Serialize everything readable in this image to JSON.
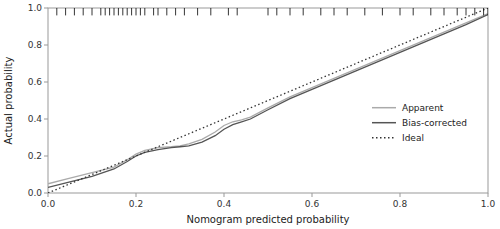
{
  "chart_data": {
    "type": "line",
    "x_label": "Nomogram predicted probability",
    "y_label": "Actual probability",
    "xlim": [
      0.0,
      1.0
    ],
    "ylim": [
      0.0,
      1.0
    ],
    "xticks": [
      {
        "value": 0.0,
        "label": "0.0"
      },
      0.2,
      0.4,
      0.6,
      0.8,
      {
        "value": 1.0,
        "label": "1.0"
      }
    ],
    "yticks": [
      {
        "value": 0.0,
        "label": "0.0"
      },
      0.2,
      0.4,
      0.6,
      0.8,
      {
        "value": 1.0,
        "label": "1.0"
      }
    ],
    "grid": false,
    "legend": "right",
    "series": [
      {
        "name": "Apparent",
        "color": "#aaaaaa",
        "line_style": "solid",
        "x": [
          0.0,
          0.05,
          0.1,
          0.15,
          0.18,
          0.2,
          0.22,
          0.25,
          0.28,
          0.3,
          0.32,
          0.35,
          0.38,
          0.4,
          0.42,
          0.44,
          0.46,
          0.5,
          0.55,
          0.6,
          0.65,
          0.7,
          0.75,
          0.8,
          0.85,
          0.9,
          0.95,
          1.0
        ],
        "values": [
          0.05,
          0.08,
          0.11,
          0.14,
          0.18,
          0.21,
          0.23,
          0.245,
          0.25,
          0.255,
          0.265,
          0.29,
          0.33,
          0.365,
          0.385,
          0.395,
          0.41,
          0.46,
          0.52,
          0.57,
          0.62,
          0.67,
          0.72,
          0.77,
          0.82,
          0.87,
          0.92,
          0.97
        ]
      },
      {
        "name": "Bias-corrected",
        "color": "#555555",
        "line_style": "solid",
        "x": [
          0.0,
          0.05,
          0.1,
          0.15,
          0.18,
          0.2,
          0.22,
          0.25,
          0.28,
          0.3,
          0.32,
          0.35,
          0.38,
          0.4,
          0.42,
          0.44,
          0.46,
          0.5,
          0.55,
          0.6,
          0.65,
          0.7,
          0.75,
          0.8,
          0.85,
          0.9,
          0.95,
          1.0
        ],
        "values": [
          0.03,
          0.06,
          0.09,
          0.13,
          0.17,
          0.2,
          0.22,
          0.235,
          0.245,
          0.25,
          0.255,
          0.275,
          0.31,
          0.345,
          0.37,
          0.385,
          0.4,
          0.45,
          0.51,
          0.56,
          0.61,
          0.66,
          0.71,
          0.76,
          0.81,
          0.86,
          0.91,
          0.965
        ]
      },
      {
        "name": "Ideal",
        "color": "#333333",
        "line_style": "dotted",
        "x": [
          0,
          1
        ],
        "values": [
          0,
          1
        ]
      }
    ],
    "rug": [
      0.02,
      0.04,
      0.06,
      0.08,
      0.1,
      0.12,
      0.13,
      0.14,
      0.15,
      0.16,
      0.17,
      0.18,
      0.19,
      0.2,
      0.21,
      0.22,
      0.24,
      0.25,
      0.27,
      0.29,
      0.31,
      0.34,
      0.37,
      0.41,
      0.43,
      0.5,
      0.52,
      0.55,
      0.58,
      0.62,
      0.65,
      0.68,
      0.72,
      0.76,
      0.8,
      0.83,
      0.87,
      0.9,
      0.93,
      0.95,
      0.97,
      0.99,
      1.0
    ]
  }
}
